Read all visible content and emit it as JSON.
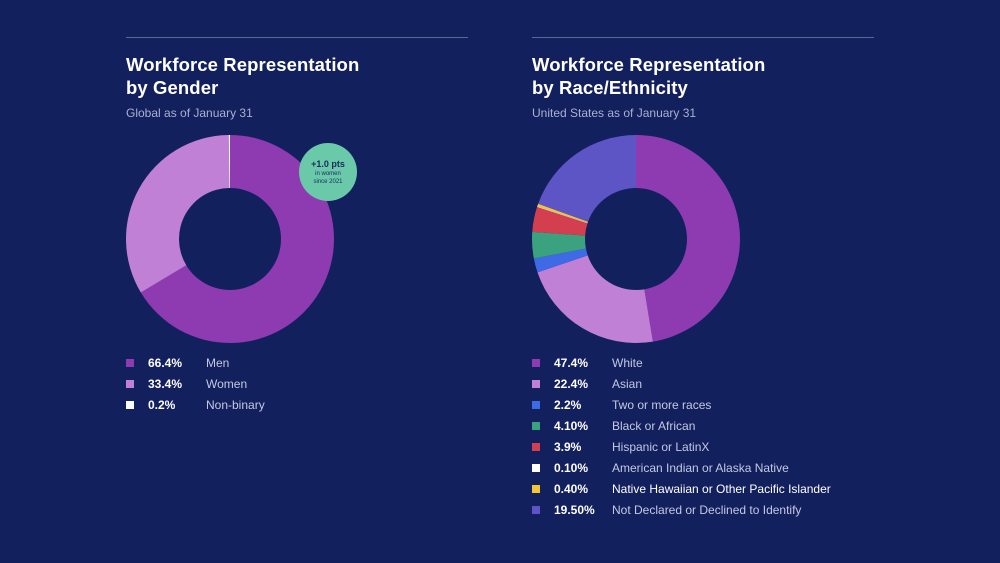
{
  "chart_data": [
    {
      "type": "pie",
      "title": "Workforce Representation\nby Gender",
      "subtitle": "Global as of January 31",
      "callout": {
        "headline": "+1.0 pts",
        "line1": "in women",
        "line2": "since 2021",
        "color": "#69c9a8"
      },
      "slices": [
        {
          "label": "Men",
          "value": 66.4,
          "display": "66.4%",
          "color": "#8e3ab0"
        },
        {
          "label": "Women",
          "value": 33.4,
          "display": "33.4%",
          "color": "#c080d6"
        },
        {
          "label": "Non-binary",
          "value": 0.2,
          "display": "0.2%",
          "color": "#ffffff"
        }
      ]
    },
    {
      "type": "pie",
      "title": "Workforce Representation\nby Race/Ethnicity",
      "subtitle": "United States as of January 31",
      "slices": [
        {
          "label": "White",
          "value": 47.4,
          "display": "47.4%",
          "color": "#8e3ab0"
        },
        {
          "label": "Asian",
          "value": 22.4,
          "display": "22.4%",
          "color": "#c080d6"
        },
        {
          "label": "Two or more races",
          "value": 2.2,
          "display": "2.2%",
          "color": "#3f6ae6"
        },
        {
          "label": "Black or African",
          "value": 4.1,
          "display": "4.10%",
          "color": "#3aa27e"
        },
        {
          "label": "Hispanic or LatinX",
          "value": 3.9,
          "display": "3.9%",
          "color": "#d43f4f"
        },
        {
          "label": "American Indian or Alaska Native",
          "value": 0.1,
          "display": "0.10%",
          "color": "#ffffff"
        },
        {
          "label": "Native Hawaiian or Other Pacific Islander",
          "value": 0.4,
          "display": "0.40%",
          "color": "#f3c634",
          "highlight": true
        },
        {
          "label": "Not Declared or Declined to Identify",
          "value": 19.5,
          "display": "19.50%",
          "color": "#5d55c6"
        }
      ]
    }
  ]
}
